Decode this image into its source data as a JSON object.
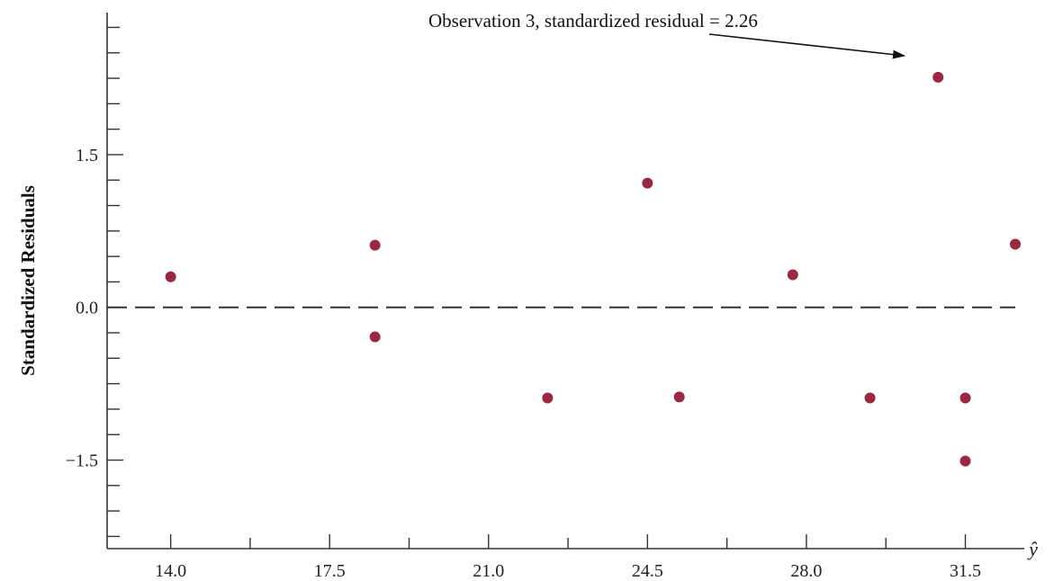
{
  "chart_data": {
    "type": "scatter",
    "title": "",
    "xlabel": "ŷ",
    "ylabel": "Standardized Residuals",
    "xlim": [
      12.6,
      32.6
    ],
    "ylim": [
      -2.37,
      2.86
    ],
    "x_ticks": [
      14.0,
      17.5,
      21.0,
      24.5,
      28.0,
      31.5
    ],
    "x_tick_labels": [
      "14.0",
      "17.5",
      "21.0",
      "24.5",
      "28.0",
      "31.5"
    ],
    "y_ticks": [
      -1.5,
      0.0,
      1.5
    ],
    "y_tick_labels": [
      "−1.5",
      "0.0",
      "1.5"
    ],
    "reference_line": {
      "y": 0.0,
      "style": "dashed"
    },
    "points": [
      {
        "x": 14.0,
        "y": 0.3
      },
      {
        "x": 18.5,
        "y": 0.61
      },
      {
        "x": 18.5,
        "y": -0.29
      },
      {
        "x": 22.3,
        "y": -0.89
      },
      {
        "x": 24.5,
        "y": 1.22
      },
      {
        "x": 25.2,
        "y": -0.88
      },
      {
        "x": 27.7,
        "y": 0.32
      },
      {
        "x": 29.4,
        "y": -0.89
      },
      {
        "x": 30.9,
        "y": 2.26
      },
      {
        "x": 31.5,
        "y": -0.89
      },
      {
        "x": 31.5,
        "y": -1.51
      },
      {
        "x": 32.6,
        "y": 0.62
      }
    ],
    "annotation": {
      "text": "Observation 3, standardized residual = 2.26",
      "target": {
        "x": 30.9,
        "y": 2.26
      }
    },
    "colors": {
      "point": "#9b2743",
      "axis": "#333333"
    },
    "grid": false,
    "legend": "none"
  }
}
